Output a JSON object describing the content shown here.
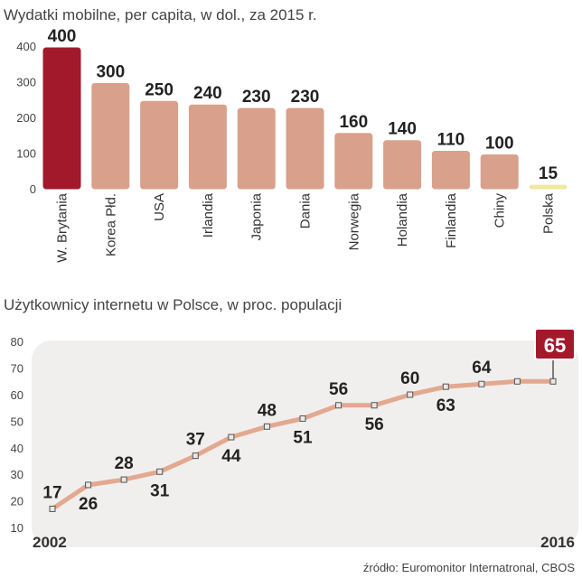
{
  "colors": {
    "bar": "#d9a08c",
    "bar_highlight": "#a3192c",
    "bar_poland": "#f2e6a0",
    "line": "#e3a88f",
    "marker": "#e8e8e8",
    "panel": "#f0efee",
    "highlight_box": "#a3192c"
  },
  "chart_data": [
    {
      "type": "bar",
      "title": "Wydatki mobilne, per capita, w dol., za 2015 r.",
      "categories": [
        "W. Brytania",
        "Korea Płd.",
        "USA",
        "Irlandia",
        "Japonia",
        "Dania",
        "Norwegia",
        "Holandia",
        "Finlandia",
        "Chiny",
        "Polska"
      ],
      "values": [
        400,
        300,
        250,
        240,
        230,
        230,
        160,
        140,
        110,
        100,
        15
      ],
      "value_labels": [
        "400",
        "300",
        "250",
        "240",
        "230",
        "230",
        "160",
        "140",
        "110",
        "100",
        "15"
      ],
      "yticks": [
        "0",
        "100",
        "200",
        "300",
        "400"
      ],
      "ylim": [
        0,
        420
      ],
      "grid": false
    },
    {
      "type": "line",
      "title": "Użytkownicy internetu w Polsce, w proc. populacji",
      "x": [
        2002,
        2003,
        2004,
        2005,
        2006,
        2007,
        2008,
        2009,
        2010,
        2011,
        2012,
        2013,
        2014,
        2015,
        2016
      ],
      "values": [
        17,
        26,
        28,
        31,
        37,
        44,
        48,
        51,
        56,
        56,
        60,
        63,
        64,
        65,
        65
      ],
      "labels": [
        {
          "i": 0,
          "text": "17",
          "pos": "above"
        },
        {
          "i": 1,
          "text": "26",
          "pos": "below"
        },
        {
          "i": 2,
          "text": "28",
          "pos": "above"
        },
        {
          "i": 3,
          "text": "31",
          "pos": "below"
        },
        {
          "i": 4,
          "text": "37",
          "pos": "above"
        },
        {
          "i": 5,
          "text": "44",
          "pos": "below"
        },
        {
          "i": 6,
          "text": "48",
          "pos": "above"
        },
        {
          "i": 7,
          "text": "51",
          "pos": "below"
        },
        {
          "i": 8,
          "text": "56",
          "pos": "above"
        },
        {
          "i": 9,
          "text": "56",
          "pos": "below"
        },
        {
          "i": 10,
          "text": "60",
          "pos": "above"
        },
        {
          "i": 11,
          "text": "63",
          "pos": "below"
        },
        {
          "i": 12,
          "text": "64",
          "pos": "above"
        }
      ],
      "highlight_label": "65",
      "yticks": [
        "10",
        "20",
        "30",
        "40",
        "50",
        "60",
        "70",
        "80"
      ],
      "ylim": [
        10,
        80
      ],
      "start_label": "2002",
      "end_label": "2016",
      "grid": false
    }
  ],
  "source": "źródło: Euromonitor Internatronal, CBOS"
}
